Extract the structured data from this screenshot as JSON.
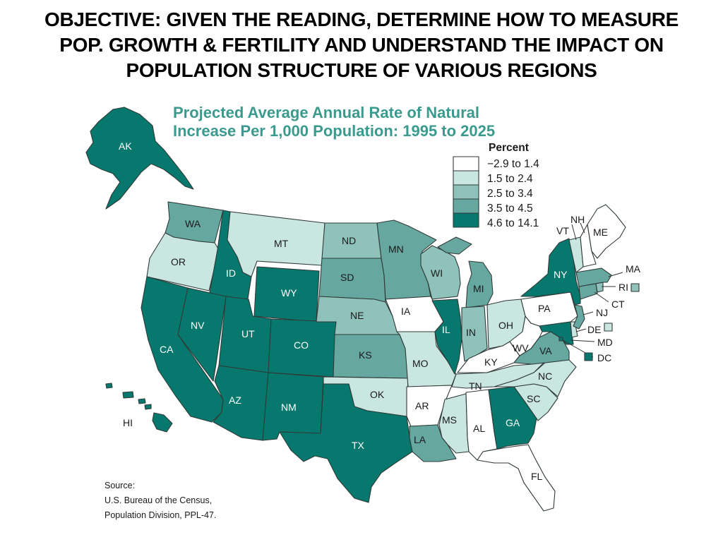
{
  "slide": {
    "title_lines": [
      "OBJECTIVE: GIVEN THE READING, DETERMINE HOW TO MEASURE",
      "POP. GROWTH & FERTILITY AND UNDERSTAND THE IMPACT ON",
      "POPULATION STRUCTURE OF VARIOUS REGIONS"
    ]
  },
  "map": {
    "title_lines": [
      "Projected Average Annual Rate of Natural",
      "Increase Per 1,000 Population: 1995 to 2025"
    ],
    "title_color": "#3a9a8e",
    "legend": {
      "heading": "Percent",
      "items": [
        {
          "label": "−2.9 to 1.4",
          "color": "#ffffff"
        },
        {
          "label": "1.5 to 2.4",
          "color": "#c9e6e1"
        },
        {
          "label": "2.5 to 3.4",
          "color": "#8ec2bb"
        },
        {
          "label": "3.5 to 4.5",
          "color": "#66a8a0"
        },
        {
          "label": "4.6 to 14.1",
          "color": "#07786d"
        }
      ]
    },
    "source_lines": [
      "Source:",
      "U.S. Bureau of the Census,",
      "Population Division, PPL-47."
    ],
    "states": [
      {
        "code": "AK",
        "cls": 4
      },
      {
        "code": "HI",
        "cls": 4
      },
      {
        "code": "WA",
        "cls": 3
      },
      {
        "code": "OR",
        "cls": 1
      },
      {
        "code": "CA",
        "cls": 4
      },
      {
        "code": "ID",
        "cls": 4
      },
      {
        "code": "NV",
        "cls": 4
      },
      {
        "code": "MT",
        "cls": 1
      },
      {
        "code": "WY",
        "cls": 4
      },
      {
        "code": "UT",
        "cls": 4
      },
      {
        "code": "CO",
        "cls": 4
      },
      {
        "code": "AZ",
        "cls": 4
      },
      {
        "code": "NM",
        "cls": 4
      },
      {
        "code": "ND",
        "cls": 2
      },
      {
        "code": "SD",
        "cls": 3
      },
      {
        "code": "NE",
        "cls": 2
      },
      {
        "code": "KS",
        "cls": 3
      },
      {
        "code": "OK",
        "cls": 1
      },
      {
        "code": "TX",
        "cls": 4
      },
      {
        "code": "MN",
        "cls": 3
      },
      {
        "code": "IA",
        "cls": 0
      },
      {
        "code": "MO",
        "cls": 1
      },
      {
        "code": "AR",
        "cls": 0
      },
      {
        "code": "LA",
        "cls": 3
      },
      {
        "code": "WI",
        "cls": 2
      },
      {
        "code": "IL",
        "cls": 4
      },
      {
        "code": "MI",
        "cls": 3
      },
      {
        "code": "IN",
        "cls": 2
      },
      {
        "code": "OH",
        "cls": 1
      },
      {
        "code": "KY",
        "cls": 0
      },
      {
        "code": "TN",
        "cls": 1
      },
      {
        "code": "MS",
        "cls": 1
      },
      {
        "code": "AL",
        "cls": 0
      },
      {
        "code": "GA",
        "cls": 4
      },
      {
        "code": "FL",
        "cls": 0
      },
      {
        "code": "SC",
        "cls": 1
      },
      {
        "code": "NC",
        "cls": 1
      },
      {
        "code": "VA",
        "cls": 3
      },
      {
        "code": "WV",
        "cls": 0
      },
      {
        "code": "PA",
        "cls": 0
      },
      {
        "code": "NY",
        "cls": 4
      },
      {
        "code": "VT",
        "cls": 1
      },
      {
        "code": "NH",
        "cls": 0
      },
      {
        "code": "ME",
        "cls": 0
      },
      {
        "code": "MA",
        "cls": 3
      },
      {
        "code": "RI",
        "cls": 2
      },
      {
        "code": "CT",
        "cls": 3
      },
      {
        "code": "NJ",
        "cls": 3
      },
      {
        "code": "DE",
        "cls": 1
      },
      {
        "code": "MD",
        "cls": 4
      },
      {
        "code": "DC",
        "cls": 4
      }
    ]
  }
}
